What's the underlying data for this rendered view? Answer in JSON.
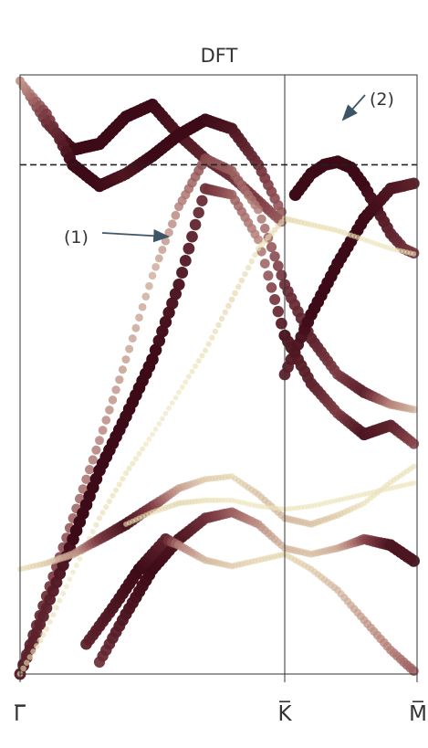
{
  "chart_data": {
    "type": "scatter",
    "title": "DFT",
    "xlabel": "",
    "ylabel": "",
    "x_ticks": [
      {
        "label": "Γ̅",
        "pos": 0.0
      },
      {
        "label": "K̅",
        "pos": 1.0
      },
      {
        "label": "M̅",
        "pos": 1.5
      }
    ],
    "xlim": [
      0,
      1.5
    ],
    "ylim": [
      -1.0,
      1.0
    ],
    "fermi_level": 0.7,
    "grid": false,
    "weight_colormap": [
      "#f6f2d6",
      "#e9dfb2",
      "#d2b59c",
      "#b47f78",
      "#7c3a42",
      "#3d0a17"
    ],
    "annotations": [
      {
        "label": "(1)",
        "target": [
          0.56,
          0.46
        ]
      },
      {
        "label": "(2)",
        "target": [
          1.22,
          0.85
        ]
      }
    ],
    "series": [
      {
        "x": [
          0.0,
          0.1,
          0.2,
          0.3,
          0.4,
          0.5,
          0.6,
          0.7,
          0.8,
          0.9,
          1.0
        ],
        "y": [
          0.98,
          0.84,
          0.75,
          0.77,
          0.86,
          0.9,
          0.8,
          0.72,
          0.66,
          0.58,
          0.5
        ],
        "weight": [
          0.6,
          0.85,
          1.0,
          1.0,
          1.0,
          1.0,
          0.95,
          0.9,
          0.85,
          0.8,
          0.7
        ]
      },
      {
        "x": [
          0.0,
          0.1,
          0.2,
          0.3,
          0.4,
          0.5,
          0.6,
          0.7,
          0.8,
          0.9,
          1.0
        ],
        "y": [
          0.98,
          0.87,
          0.7,
          0.63,
          0.67,
          0.73,
          0.8,
          0.85,
          0.82,
          0.7,
          0.52
        ],
        "weight": [
          0.5,
          0.8,
          1.0,
          1.0,
          0.95,
          1.0,
          1.0,
          1.0,
          0.95,
          0.85,
          0.7
        ]
      },
      {
        "x": [
          0.0,
          0.1,
          0.2,
          0.3,
          0.4,
          0.5,
          0.6,
          0.7,
          0.8,
          0.9,
          1.0,
          1.1,
          1.2,
          1.3,
          1.4,
          1.5
        ],
        "y": [
          -1.0,
          -0.74,
          -0.48,
          -0.22,
          0.05,
          0.33,
          0.56,
          0.72,
          0.68,
          0.55,
          0.3,
          0.12,
          0.0,
          -0.06,
          -0.1,
          -0.12
        ],
        "weight": [
          0.9,
          0.85,
          0.7,
          0.6,
          0.5,
          0.45,
          0.6,
          0.75,
          0.7,
          0.6,
          0.85,
          0.9,
          0.8,
          0.9,
          0.6,
          0.4
        ]
      },
      {
        "x": [
          0.0,
          0.1,
          0.2,
          0.3,
          0.4,
          0.5,
          0.6,
          0.7,
          0.8,
          0.9,
          1.0,
          1.1,
          1.2,
          1.3,
          1.4,
          1.5
        ],
        "y": [
          -1.0,
          -0.78,
          -0.55,
          -0.32,
          -0.14,
          0.05,
          0.3,
          0.62,
          0.6,
          0.45,
          0.13,
          -0.03,
          -0.13,
          -0.2,
          -0.17,
          -0.24
        ],
        "weight": [
          0.9,
          0.9,
          1.0,
          1.0,
          1.0,
          1.0,
          0.95,
          0.85,
          0.7,
          0.6,
          0.95,
          0.9,
          0.8,
          0.95,
          0.9,
          0.75
        ]
      },
      {
        "x": [
          1.04,
          1.1,
          1.15,
          1.2,
          1.25,
          1.3,
          1.35,
          1.4,
          1.45,
          1.5
        ],
        "y": [
          0.6,
          0.67,
          0.7,
          0.71,
          0.69,
          0.63,
          0.55,
          0.47,
          0.42,
          0.4
        ],
        "weight": [
          1.0,
          1.0,
          1.0,
          1.0,
          1.0,
          1.0,
          0.95,
          0.9,
          0.85,
          0.8
        ]
      },
      {
        "x": [
          1.0,
          1.1,
          1.2,
          1.3,
          1.4,
          1.5
        ],
        "y": [
          0.0,
          0.2,
          0.37,
          0.52,
          0.62,
          0.64
        ],
        "weight": [
          0.9,
          1.0,
          1.0,
          1.0,
          0.95,
          0.9
        ]
      },
      {
        "x": [
          0.0,
          0.1,
          0.2,
          0.3,
          0.4,
          0.5,
          0.6,
          0.7,
          0.8,
          0.9,
          1.0,
          1.1,
          1.2,
          1.3,
          1.4,
          1.5
        ],
        "y": [
          -1.0,
          -0.85,
          -0.66,
          -0.48,
          -0.33,
          -0.2,
          -0.06,
          0.08,
          0.25,
          0.42,
          0.52,
          0.5,
          0.48,
          0.45,
          0.42,
          0.4
        ],
        "weight": [
          0.25,
          0.2,
          0.15,
          0.2,
          0.2,
          0.15,
          0.15,
          0.2,
          0.25,
          0.2,
          0.25,
          0.2,
          0.2,
          0.15,
          0.15,
          0.15
        ]
      },
      {
        "x": [
          0.0,
          0.1,
          0.2,
          0.3,
          0.4,
          0.5,
          0.6,
          0.7,
          0.8,
          0.9,
          1.0,
          1.1,
          1.2,
          1.3,
          1.4,
          1.5
        ],
        "y": [
          -0.65,
          -0.63,
          -0.6,
          -0.55,
          -0.5,
          -0.44,
          -0.38,
          -0.35,
          -0.34,
          -0.4,
          -0.48,
          -0.5,
          -0.47,
          -0.43,
          -0.36,
          -0.3
        ],
        "weight": [
          0.2,
          0.3,
          0.5,
          0.8,
          0.95,
          0.8,
          0.5,
          0.3,
          0.25,
          0.35,
          0.4,
          0.35,
          0.3,
          0.2,
          0.2,
          0.2
        ]
      },
      {
        "x": [
          0.3,
          0.4,
          0.5,
          0.6,
          0.7,
          0.8,
          0.9,
          1.0,
          1.1,
          1.2,
          1.3,
          1.4,
          1.5
        ],
        "y": [
          -0.96,
          -0.8,
          -0.65,
          -0.55,
          -0.48,
          -0.46,
          -0.5,
          -0.58,
          -0.6,
          -0.58,
          -0.55,
          -0.57,
          -0.63
        ],
        "weight": [
          0.85,
          0.95,
          1.0,
          0.95,
          0.85,
          0.7,
          0.55,
          0.4,
          0.35,
          0.45,
          0.75,
          0.95,
          0.95
        ]
      },
      {
        "x": [
          0.25,
          0.35,
          0.45,
          0.55,
          0.6,
          0.7,
          0.8,
          0.9,
          1.0,
          1.1,
          1.2,
          1.3,
          1.4,
          1.5
        ],
        "y": [
          -0.9,
          -0.78,
          -0.65,
          -0.55,
          -0.57,
          -0.62,
          -0.64,
          -0.62,
          -0.6,
          -0.65,
          -0.72,
          -0.82,
          -0.92,
          -1.0
        ],
        "weight": [
          0.9,
          0.95,
          1.0,
          0.9,
          0.6,
          0.4,
          0.3,
          0.25,
          0.25,
          0.3,
          0.4,
          0.5,
          0.6,
          0.7
        ]
      },
      {
        "x": [
          0.4,
          0.5,
          0.6,
          0.7,
          0.8,
          0.9,
          1.0,
          1.1,
          1.2,
          1.3,
          1.4,
          1.5
        ],
        "y": [
          -0.5,
          -0.46,
          -0.43,
          -0.42,
          -0.42,
          -0.44,
          -0.45,
          -0.44,
          -0.42,
          -0.4,
          -0.38,
          -0.36
        ],
        "weight": [
          0.15,
          0.2,
          0.25,
          0.2,
          0.15,
          0.15,
          0.15,
          0.15,
          0.15,
          0.15,
          0.15,
          0.15
        ]
      }
    ]
  }
}
